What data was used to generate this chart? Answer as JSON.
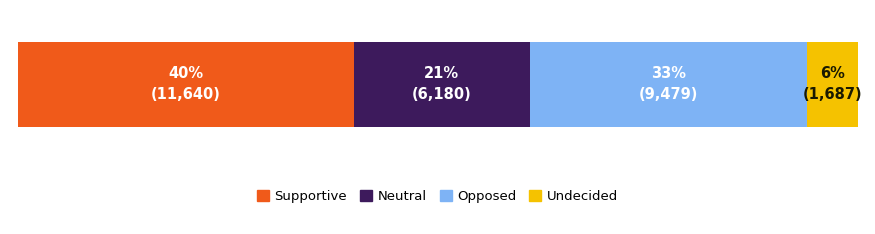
{
  "categories": [
    "Supportive",
    "Neutral",
    "Opposed",
    "Undecided"
  ],
  "values": [
    40,
    21,
    33,
    6
  ],
  "counts": [
    "11,640",
    "6,180",
    "9,479",
    "1,687"
  ],
  "colors": [
    "#F05A1A",
    "#3D1A5C",
    "#7EB3F5",
    "#F5C200"
  ],
  "text_colors": [
    "#FFFFFF",
    "#FFFFFF",
    "#FFFFFF",
    "#1A1A00"
  ],
  "legend_colors": [
    "#F05A1A",
    "#3D1A5C",
    "#7EB3F5",
    "#F5C200"
  ],
  "background_color": "#FFFFFF",
  "label_fontsize": 10.5,
  "legend_fontsize": 9.5
}
